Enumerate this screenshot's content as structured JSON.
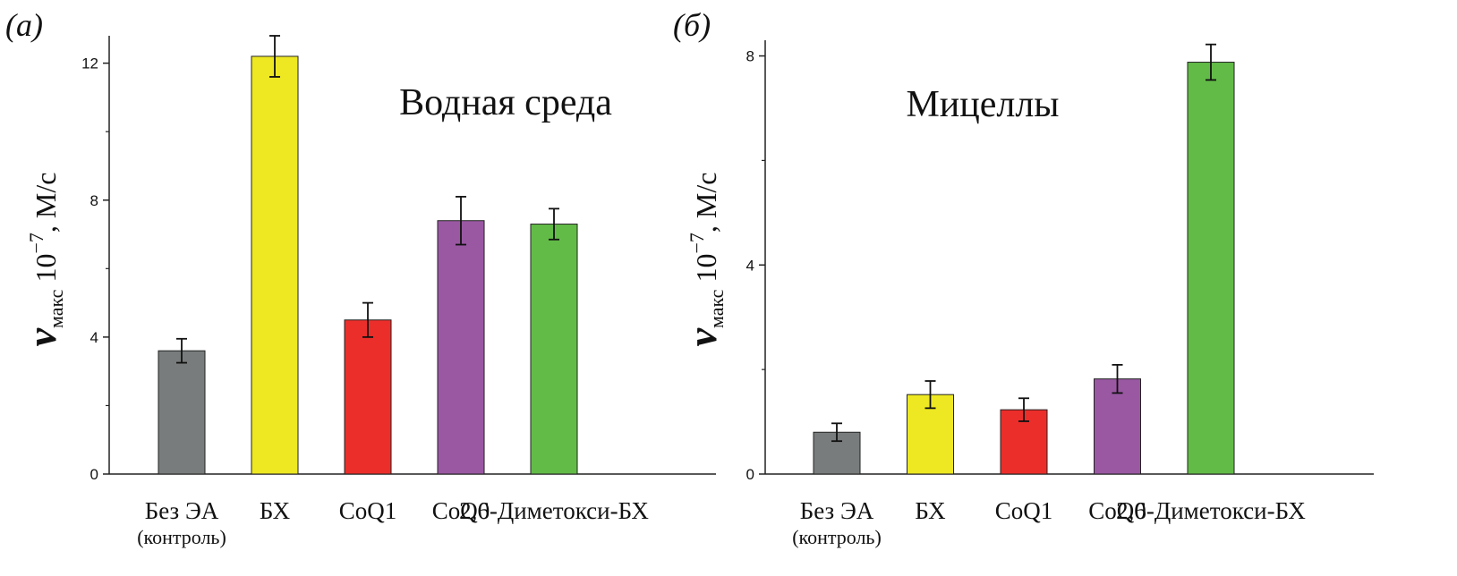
{
  "chart_data": [
    {
      "type": "bar",
      "panel_label": "(а)",
      "title": "Водная среда",
      "ylabel": {
        "symbol": "v",
        "subscript": "макс",
        "base": "10",
        "exponent": "−7",
        "unit": ", М/с"
      },
      "categories": [
        "Без ЭА",
        "БХ",
        "CoQ1",
        "CoQ0",
        "2,6-Диметокси-БХ"
      ],
      "category_sublabels": [
        "(контроль)",
        null,
        null,
        null,
        null
      ],
      "values": [
        3.6,
        12.2,
        4.5,
        7.4,
        7.3
      ],
      "errors": [
        0.35,
        0.6,
        0.5,
        0.7,
        0.45
      ],
      "colors": [
        "#797c7c",
        "#ede822",
        "#ec2e2b",
        "#9a58a3",
        "#62bb47"
      ],
      "ylim": [
        0,
        12.8
      ],
      "yticks": [
        0,
        4,
        8,
        12
      ],
      "minor_yticks": [
        2,
        6,
        10
      ]
    },
    {
      "type": "bar",
      "panel_label": "(б)",
      "title": "Мицеллы",
      "ylabel": {
        "symbol": "v",
        "subscript": "макс",
        "base": "10",
        "exponent": "−7",
        "unit": ", М/с"
      },
      "categories": [
        "Без ЭА",
        "БХ",
        "CoQ1",
        "CoQ0",
        "2,6-Диметокси-БХ"
      ],
      "category_sublabels": [
        "(контроль)",
        null,
        null,
        null,
        null
      ],
      "values": [
        0.8,
        1.52,
        1.23,
        1.82,
        7.88
      ],
      "errors": [
        0.17,
        0.26,
        0.22,
        0.27,
        0.34
      ],
      "colors": [
        "#797c7c",
        "#ede822",
        "#ec2e2b",
        "#9a58a3",
        "#62bb47"
      ],
      "ylim": [
        0,
        8.3
      ],
      "yticks": [
        0,
        4,
        8
      ],
      "minor_yticks": [
        2,
        6
      ]
    }
  ]
}
